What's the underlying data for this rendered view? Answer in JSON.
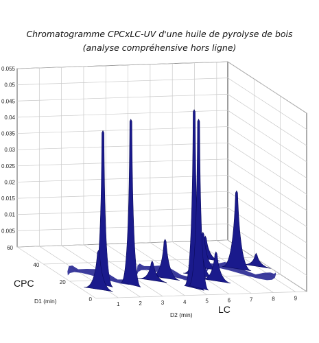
{
  "header": {
    "title_line1": "Chromatogramme  CPCxLC-UV d'une huile de pyrolyse de bois",
    "title_line2": "(analyse compréhensive hors ligne)"
  },
  "colors": {
    "surface": "#1a1a8c",
    "surface_dark": "#0a0a5a",
    "grid": "#c9c9c9"
  },
  "chart_data": {
    "type": "surface3d",
    "title": "Chromatogramme  CPCxLC-UV d'une huile de pyrolyse de bois (analyse compréhensive hors ligne)",
    "z_ticks": [
      "0.055",
      "0.05",
      "0.045",
      "0.04",
      "0.035",
      "0.03",
      "0.025",
      "0.02",
      "0.015",
      "0.01",
      "0.005"
    ],
    "z_range": [
      0,
      0.055
    ],
    "cpc_axis": {
      "label": "CPC",
      "sublabel": "D1 (min)",
      "ticks": [
        "60",
        "40",
        "20",
        "0"
      ],
      "range": [
        0,
        60
      ]
    },
    "lc_axis": {
      "label": "LC",
      "sublabel": "D2 (min)",
      "ticks": [
        "1",
        "2",
        "3",
        "4",
        "5",
        "6",
        "7",
        "8",
        "9"
      ],
      "range": [
        0,
        9.5
      ]
    },
    "peaks": [
      {
        "d2": 1.2,
        "d1": 15,
        "z": 0.0475
      },
      {
        "d2": 2.4,
        "d1": 14,
        "z": 0.051
      },
      {
        "d2": 4.9,
        "d1": 8,
        "z": 0.055
      },
      {
        "d2": 5.1,
        "d1": 8,
        "z": 0.052
      },
      {
        "d2": 8.0,
        "d1": 28,
        "z": 0.024
      },
      {
        "d2": 0.7,
        "d1": 10,
        "z": 0.012
      },
      {
        "d2": 4.3,
        "d1": 20,
        "z": 0.012
      },
      {
        "d2": 5.9,
        "d1": 22,
        "z": 0.018
      },
      {
        "d2": 6.6,
        "d1": 30,
        "z": 0.011
      },
      {
        "d2": 3.6,
        "d1": 18,
        "z": 0.006
      },
      {
        "d2": 6.3,
        "d1": 15,
        "z": 0.009
      },
      {
        "d2": 7.3,
        "d1": 40,
        "z": 0.007
      },
      {
        "d2": 9.0,
        "d1": 30,
        "z": 0.004
      }
    ]
  }
}
